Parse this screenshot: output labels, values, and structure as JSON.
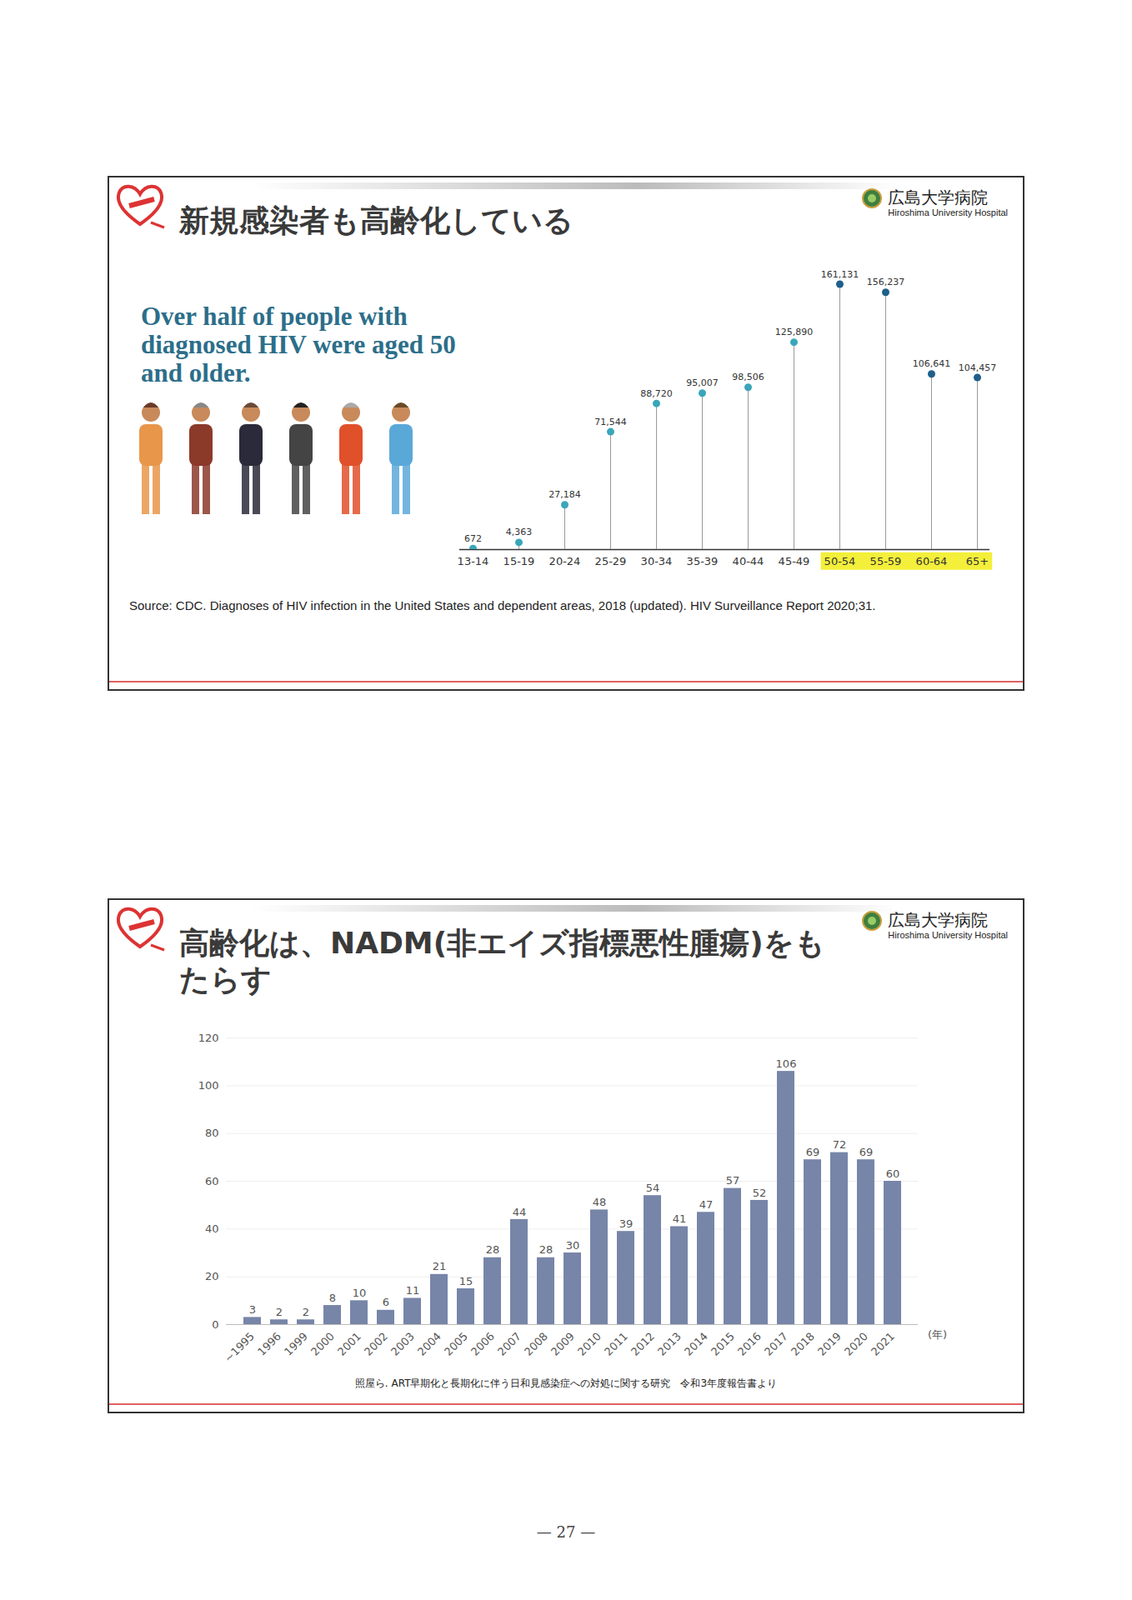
{
  "page": {
    "logo": {
      "ja": "広島大学病院",
      "en": "Hiroshima University Hospital"
    },
    "page_number": "— 27 —"
  },
  "chart_data": [
    {
      "type": "lollipop",
      "title": "新規感染者も高齢化している",
      "annotations": [
        "Over half of people with diagnosed HIV were aged 50 and older."
      ],
      "source": "Source: CDC. Diagnoses of HIV infection in the United States and dependent areas, 2018 (updated). HIV Surveillance Report 2020;31.",
      "categories": [
        "13-14",
        "15-19",
        "20-24",
        "25-29",
        "30-34",
        "35-39",
        "40-44",
        "45-49",
        "50-54",
        "55-59",
        "60-64",
        "65+"
      ],
      "values": [
        672,
        4363,
        27184,
        71544,
        88720,
        95007,
        98506,
        125890,
        161131,
        156237,
        106641,
        104457
      ],
      "value_labels": [
        "672",
        "4,363",
        "27,184",
        "71,544",
        "88,720",
        "95,007",
        "98,506",
        "125,890",
        "161,131",
        "156,237",
        "106,641",
        "104,457"
      ],
      "colors": [
        "#3aa6b9",
        "#3aa6b9",
        "#3aa6b9",
        "#3aa6b9",
        "#3aa6b9",
        "#3aa6b9",
        "#3aa6b9",
        "#3aa6b9",
        "#1f5f8b",
        "#1f5f8b",
        "#1f5f8b",
        "#1f5f8b"
      ],
      "ylim": [
        0,
        170000
      ],
      "yticks": [],
      "tick_labels": "x",
      "data_labels": true
    },
    {
      "type": "bar",
      "title": "高齢化は、NADM(非エイズ指標悪性腫瘍)をもたらす",
      "source": "照屋ら. ART早期化と長期化に伴う日和見感染症への対処に関する研究　令和3年度報告書より",
      "xlabel": "(年)",
      "categories": [
        "~1995",
        "1996",
        "1999",
        "2000",
        "2001",
        "2002",
        "2003",
        "2004",
        "2005",
        "2006",
        "2007",
        "2008",
        "2009",
        "2010",
        "2011",
        "2012",
        "2013",
        "2014",
        "2015",
        "2016",
        "2017",
        "2018",
        "2019",
        "2020",
        "2021"
      ],
      "values": [
        3,
        2,
        2,
        8,
        10,
        6,
        11,
        21,
        15,
        28,
        44,
        28,
        30,
        48,
        39,
        54,
        41,
        47,
        57,
        52,
        106,
        69,
        72,
        69,
        60
      ],
      "color": "#7785a8",
      "ylim": [
        0,
        120
      ],
      "yticks": [
        0,
        20,
        40,
        60,
        80,
        100,
        120
      ],
      "grid": true,
      "data_labels": true
    }
  ]
}
